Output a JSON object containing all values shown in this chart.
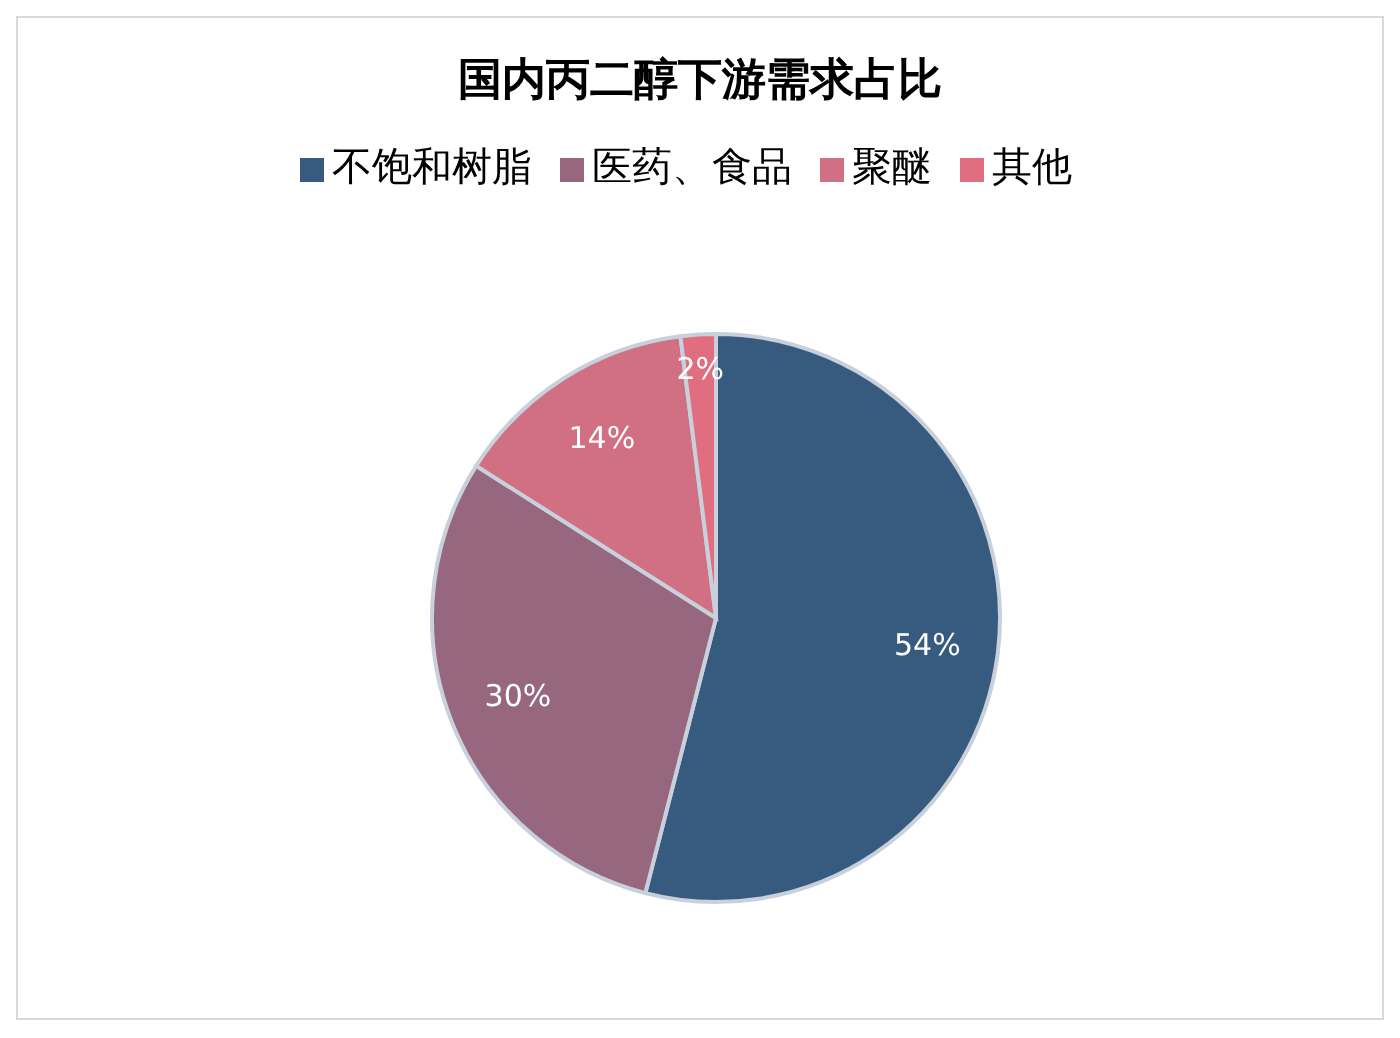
{
  "chart_data": {
    "type": "pie",
    "title": "国内丙二醇下游需求占比",
    "categories": [
      "不饱和树脂",
      "医药、食品",
      "聚醚",
      "其他"
    ],
    "values": [
      54,
      30,
      14,
      2
    ],
    "value_labels": [
      "54%",
      "30%",
      "14%",
      "2%"
    ],
    "colors": [
      "#365b7e",
      "#96677f",
      "#d07082",
      "#e06d80"
    ],
    "legend": "top"
  }
}
